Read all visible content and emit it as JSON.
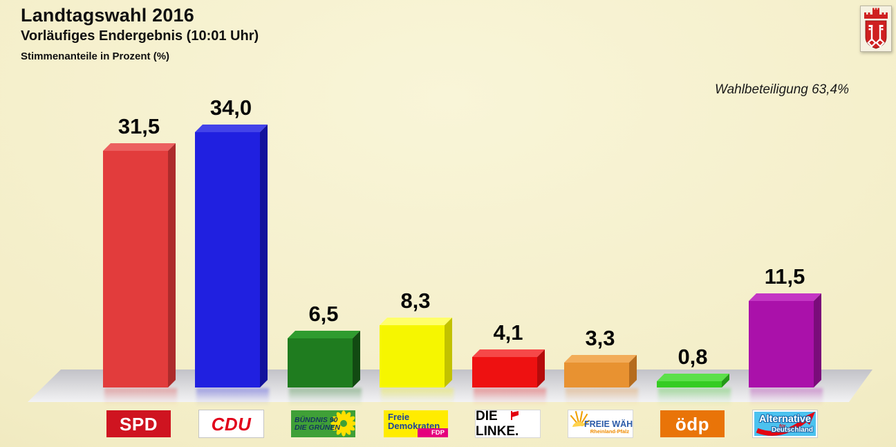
{
  "header": {
    "title": "Landtagswahl 2016",
    "subtitle": "Vorläufiges Endergebnis (10:01 Uhr)",
    "caption": "Stimmenanteile in Prozent (%)"
  },
  "turnout": "Wahlbeteiligung 63,4%",
  "chart_data": {
    "type": "bar",
    "title": "Landtagswahl 2016 – Vorläufiges Endergebnis (10:01 Uhr)",
    "ylabel": "Stimmenanteile in Prozent (%)",
    "ylim": [
      0,
      35
    ],
    "grid": false,
    "legend_position": "party logos below bars",
    "categories": [
      "SPD",
      "CDU",
      "BÜNDNIS 90/DIE GRÜNEN",
      "FDP",
      "DIE LINKE",
      "FREIE WÄHLER",
      "ödp",
      "AfD"
    ],
    "values": [
      31.5,
      34.0,
      6.5,
      8.3,
      4.1,
      3.3,
      0.8,
      11.5
    ],
    "value_labels": [
      "31,5",
      "34,0",
      "6,5",
      "8,3",
      "4,1",
      "3,3",
      "0,8",
      "11,5"
    ],
    "turnout_percent": 63.4
  },
  "parties": [
    {
      "id": "spd",
      "colors": {
        "front": "#e23c3c",
        "top": "#ec6060",
        "side": "#ad2b2b"
      },
      "logo": {
        "style": "box",
        "bg": "#cf1420",
        "text": "SPD",
        "color": "#ffffff"
      }
    },
    {
      "id": "cdu",
      "colors": {
        "front": "#2020e0",
        "top": "#4343e9",
        "side": "#12129c"
      },
      "logo": {
        "style": "box-italic",
        "bg": "#ffffff",
        "border": "#c4c4c4",
        "text": "CDU",
        "color": "#e1001a"
      }
    },
    {
      "id": "gruene",
      "colors": {
        "front": "#1f7c1f",
        "top": "#2f9c2f",
        "side": "#124a12"
      },
      "logo": {
        "style": "gruene",
        "bg": "#3fa037",
        "line1": "BÜNDNIS 90",
        "line2": "DIE GRÜNEN",
        "color": "#14365c",
        "flower": "#ffe000"
      }
    },
    {
      "id": "fdp",
      "colors": {
        "front": "#f6f600",
        "top": "#ffff6a",
        "side": "#c2c200"
      },
      "logo": {
        "style": "fdp",
        "bg": "#ffec00",
        "line1": "Freie",
        "line2": "Demokraten",
        "color": "#1c449b",
        "badge_text": "FDP",
        "badge_bg": "#e5007d",
        "badge_color": "#ffffff"
      }
    },
    {
      "id": "linke",
      "colors": {
        "front": "#ee1111",
        "top": "#f64848",
        "side": "#b50b0b"
      },
      "logo": {
        "style": "linke",
        "bg": "#ffffff",
        "border": "#d6d6d6",
        "text": "DIE LINKE.",
        "color": "#000000",
        "flag": "#e3000f"
      }
    },
    {
      "id": "fw",
      "colors": {
        "front": "#e89231",
        "top": "#f2ac59",
        "side": "#b56c1e"
      },
      "logo": {
        "style": "fw",
        "bg": "#ffffff",
        "border": "#d6d6d6",
        "line1": "FREIE WÄHLER",
        "line2": "Rheinland-Pfalz",
        "color": "#2a5aa8",
        "sub_color": "#f08c00",
        "sun": "#f0a000"
      }
    },
    {
      "id": "oedp",
      "colors": {
        "front": "#35cc22",
        "top": "#5ce04a",
        "side": "#249918"
      },
      "logo": {
        "style": "box",
        "bg": "#e97408",
        "text": "ödp",
        "color": "#ffffff"
      }
    },
    {
      "id": "afd",
      "colors": {
        "front": "#aa11aa",
        "top": "#c436c4",
        "side": "#7a0c7a"
      },
      "logo": {
        "style": "afd",
        "bg": "#4cc2ef",
        "border": "#c9c9c9",
        "line1": "Alternative",
        "line2": "für",
        "line3": "Deutschland",
        "arrow": "#e30613"
      }
    }
  ]
}
